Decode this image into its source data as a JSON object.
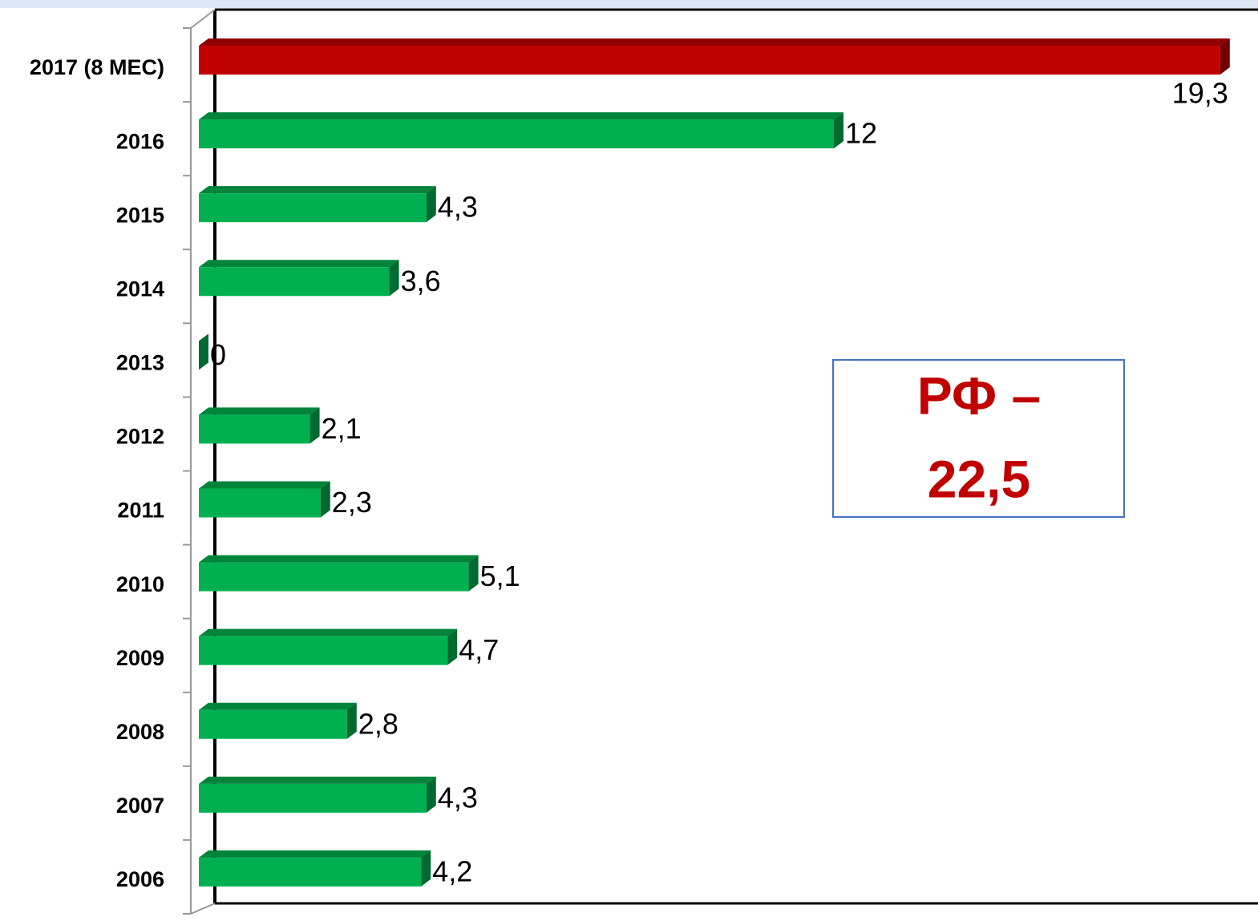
{
  "chart_data": {
    "type": "bar",
    "orientation": "horizontal",
    "categories": [
      "2017 (8 МЕС)",
      "2016",
      "2015",
      "2014",
      "2013",
      "2012",
      "2011",
      "2010",
      "2009",
      "2008",
      "2007",
      "2006"
    ],
    "values": [
      19.3,
      12,
      4.3,
      3.6,
      0,
      2.1,
      2.3,
      5.1,
      4.7,
      2.8,
      4.3,
      4.2
    ],
    "value_labels": [
      "19,3",
      "12",
      "4,3",
      "3,6",
      "0",
      "2,1",
      "2,3",
      "5,1",
      "4,7",
      "2,8",
      "4,3",
      "4,2"
    ],
    "colors": [
      "#c00000",
      "#00b050",
      "#00b050",
      "#00b050",
      "#00b050",
      "#00b050",
      "#00b050",
      "#00b050",
      "#00b050",
      "#00b050",
      "#00b050",
      "#00b050"
    ],
    "xlim": [
      0,
      20
    ],
    "annotation": [
      "РФ –",
      "22,5"
    ],
    "annotation_color": "#c00000"
  }
}
